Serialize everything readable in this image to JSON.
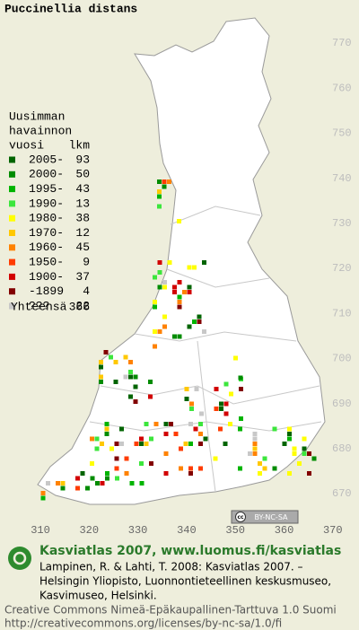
{
  "map": {
    "title": "Puccinellia distans",
    "grid": {
      "north_labels": [
        770,
        760,
        750,
        740,
        730,
        720,
        710,
        700,
        690,
        680,
        670
      ],
      "east_labels": [
        310,
        320,
        330,
        340,
        350,
        360,
        370
      ]
    },
    "legend": {
      "heading": [
        "Uusimman",
        "havainnon",
        "vuosi"
      ],
      "count_heading": "lkm",
      "items": [
        {
          "label": "2005-",
          "count": 93,
          "color": "#006400"
        },
        {
          "label": "2000-",
          "count": 50,
          "color": "#008c00"
        },
        {
          "label": "1995-",
          "count": 43,
          "color": "#00b400"
        },
        {
          "label": "1990-",
          "count": 13,
          "color": "#3ce63c"
        },
        {
          "label": "1980-",
          "count": 38,
          "color": "#ffff00"
        },
        {
          "label": "1970-",
          "count": 12,
          "color": "#ffc800"
        },
        {
          "label": "1960-",
          "count": 45,
          "color": "#ff8200"
        },
        {
          "label": "1950-",
          "count": 9,
          "color": "#ff3c00"
        },
        {
          "label": "1900-",
          "count": 37,
          "color": "#d20000"
        },
        {
          "label": "-1899",
          "count": 4,
          "color": "#820000"
        },
        {
          "label": "???",
          "count": 22,
          "color": "#c8c8c8"
        }
      ],
      "total_label": "Yhteensä",
      "total": 366
    },
    "badge": {
      "cc": "cc",
      "license": "BY-NC-SA"
    },
    "footer": {
      "heading": "Kasviatlas 2007, www.luomus.fi/kasviatlas",
      "citation": [
        "Lampinen, R. & Lahti, T. 2008: Kasviatlas 2007. –",
        "Helsingin Yliopisto, Luonnontieteellinen keskusmuseo,",
        "Kasvimuseo, Helsinki."
      ],
      "license": [
        "Creative Commons Nimeä-Epäkaupallinen-Tarttuva 1.0 Suomi",
        "http://creativecommons.org/licenses/by-nc-sa/1.0/fi"
      ]
    }
  }
}
